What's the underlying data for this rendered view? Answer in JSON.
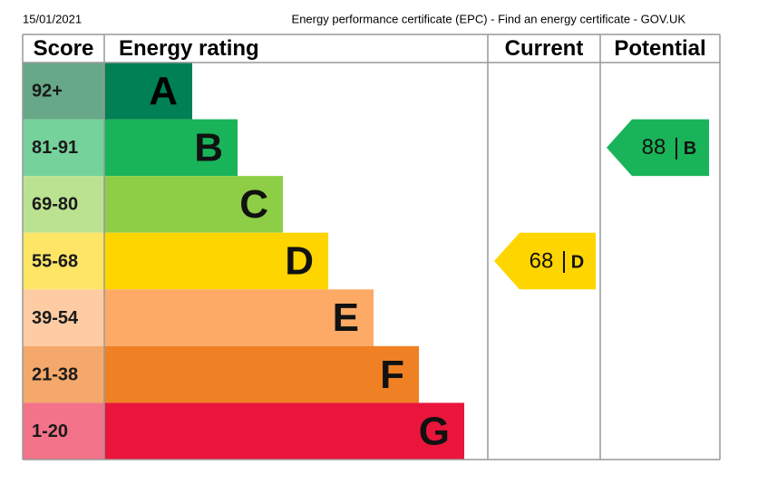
{
  "header": {
    "date": "15/01/2021",
    "title": "Energy performance certificate (EPC) - Find an energy certificate - GOV.UK"
  },
  "table": {
    "columns": [
      "Score",
      "Energy rating",
      "Current",
      "Potential"
    ],
    "bands": [
      {
        "score": "92+",
        "rating": "A",
        "color": "#008054",
        "score_color": "#66a887"
      },
      {
        "score": "81-91",
        "rating": "B",
        "color": "#19b459",
        "score_color": "#75d29b"
      },
      {
        "score": "69-80",
        "rating": "C",
        "color": "#8dce46",
        "score_color": "#bbe290"
      },
      {
        "score": "55-68",
        "rating": "D",
        "color": "#ffd500",
        "score_color": "#ffe566"
      },
      {
        "score": "39-54",
        "rating": "E",
        "color": "#fcaa65",
        "score_color": "#fdcca3"
      },
      {
        "score": "21-38",
        "rating": "F",
        "color": "#ef8023",
        "score_color": "#f5a86b"
      },
      {
        "score": "1-20",
        "rating": "G",
        "color": "#e9153b",
        "score_color": "#f2738a"
      }
    ],
    "current": {
      "value": 68,
      "rating": "D",
      "band": 3
    },
    "potential": {
      "value": 88,
      "rating": "B",
      "band": 1
    }
  }
}
